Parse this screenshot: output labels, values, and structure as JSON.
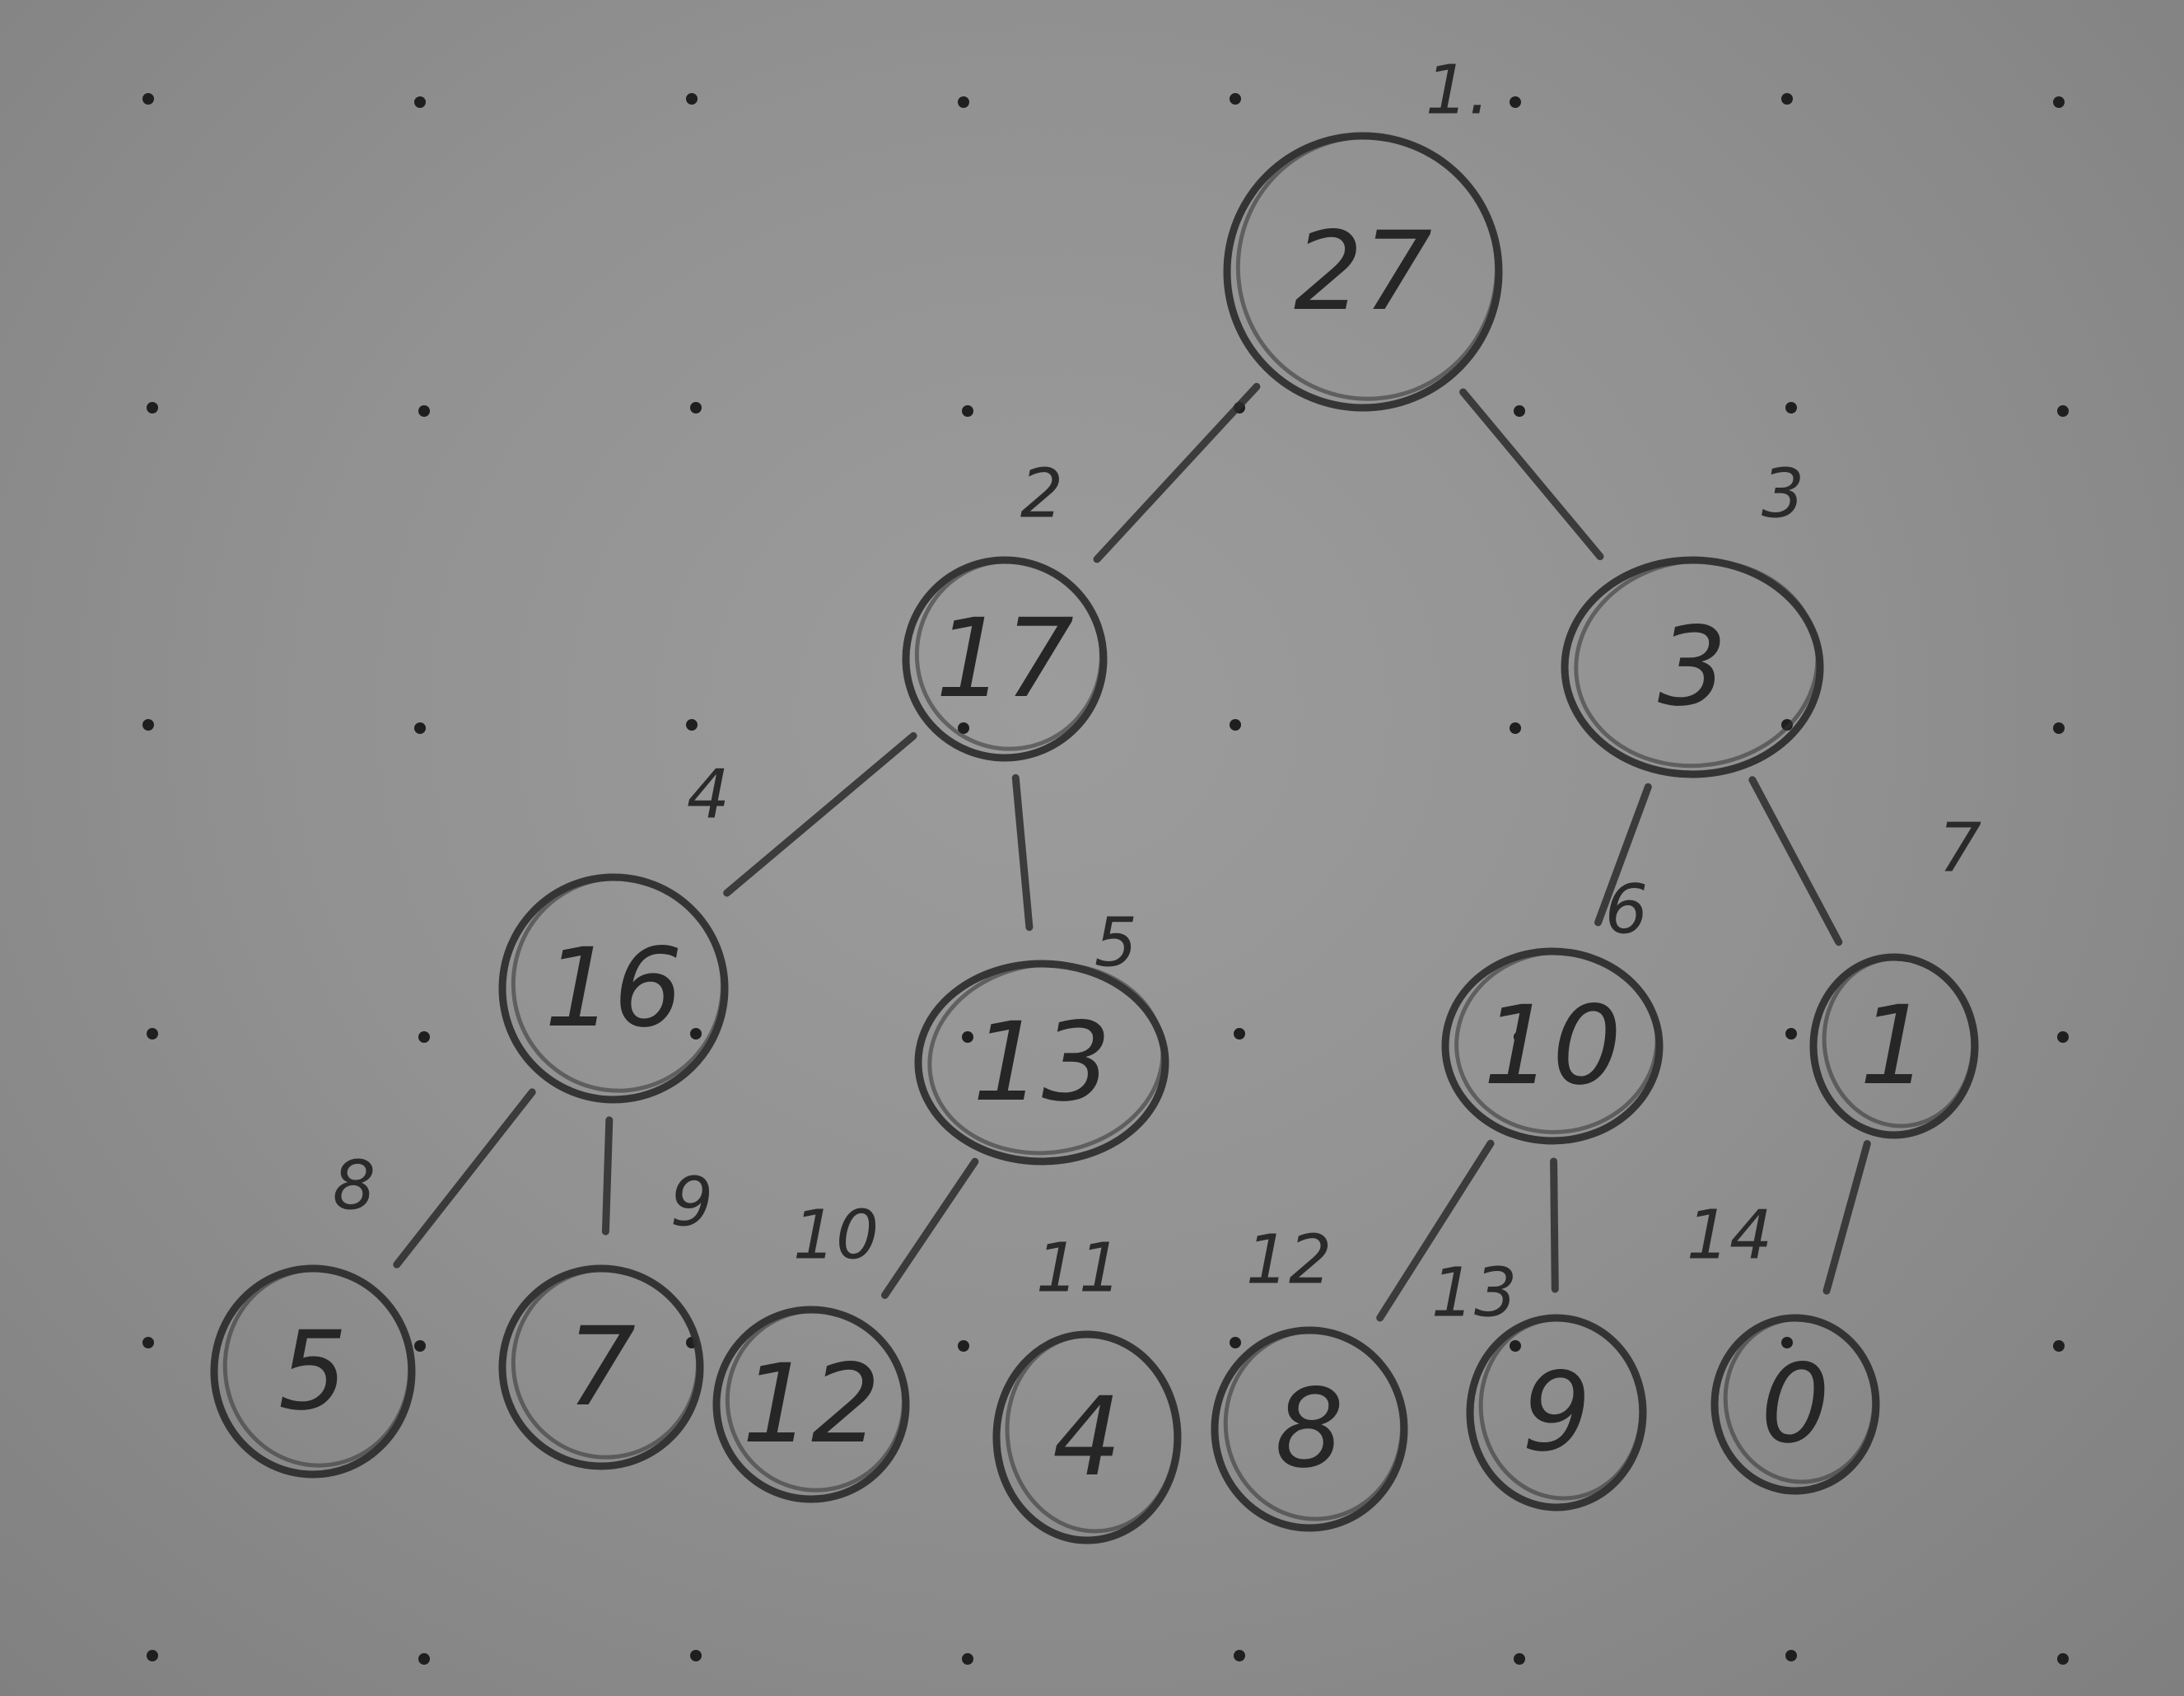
{
  "tree": {
    "nodes": [
      {
        "index": "1.",
        "value": "27"
      },
      {
        "index": "2",
        "value": "17"
      },
      {
        "index": "3",
        "value": "3"
      },
      {
        "index": "4",
        "value": "16"
      },
      {
        "index": "5",
        "value": "13"
      },
      {
        "index": "6",
        "value": "10"
      },
      {
        "index": "7",
        "value": "1"
      },
      {
        "index": "8",
        "value": "5"
      },
      {
        "index": "9",
        "value": "7"
      },
      {
        "index": "10",
        "value": "12"
      },
      {
        "index": "11",
        "value": "4"
      },
      {
        "index": "12",
        "value": "8"
      },
      {
        "index": "13",
        "value": "9"
      },
      {
        "index": "14",
        "value": "0"
      }
    ],
    "edges": [
      [
        1,
        2
      ],
      [
        1,
        3
      ],
      [
        2,
        4
      ],
      [
        2,
        5
      ],
      [
        3,
        6
      ],
      [
        3,
        7
      ],
      [
        4,
        8
      ],
      [
        4,
        9
      ],
      [
        5,
        10
      ],
      [
        6,
        12
      ],
      [
        6,
        13
      ],
      [
        7,
        14
      ]
    ]
  },
  "paper": {
    "background_color": "#929292",
    "ink_color": "#2a2a2a",
    "dot_grid": true
  }
}
